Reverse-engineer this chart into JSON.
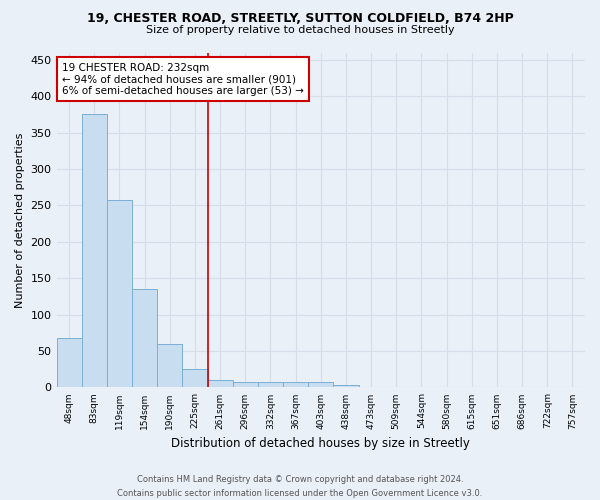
{
  "title1": "19, CHESTER ROAD, STREETLY, SUTTON COLDFIELD, B74 2HP",
  "title2": "Size of property relative to detached houses in Streetly",
  "xlabel": "Distribution of detached houses by size in Streetly",
  "ylabel": "Number of detached properties",
  "bar_labels": [
    "48sqm",
    "83sqm",
    "119sqm",
    "154sqm",
    "190sqm",
    "225sqm",
    "261sqm",
    "296sqm",
    "332sqm",
    "367sqm",
    "403sqm",
    "438sqm",
    "473sqm",
    "509sqm",
    "544sqm",
    "580sqm",
    "615sqm",
    "651sqm",
    "686sqm",
    "722sqm",
    "757sqm"
  ],
  "bar_values": [
    68,
    375,
    258,
    135,
    60,
    25,
    10,
    8,
    8,
    8,
    8,
    3,
    0,
    0,
    0,
    0,
    1,
    0,
    0,
    0,
    1
  ],
  "bar_color": "#c9ddf0",
  "bar_edge_color": "#7aafd4",
  "grid_color": "#d4dde8",
  "background_color": "#eaf0f8",
  "vline_color": "#cc0000",
  "annotation_text": "19 CHESTER ROAD: 232sqm\n← 94% of detached houses are smaller (901)\n6% of semi-detached houses are larger (53) →",
  "annotation_box_color": "#ffffff",
  "annotation_box_edge": "#cc0000",
  "footnote1": "Contains HM Land Registry data © Crown copyright and database right 2024.",
  "footnote2": "Contains public sector information licensed under the Open Government Licence v3.0.",
  "ylim": [
    0,
    460
  ],
  "yticks": [
    0,
    50,
    100,
    150,
    200,
    250,
    300,
    350,
    400,
    450
  ]
}
